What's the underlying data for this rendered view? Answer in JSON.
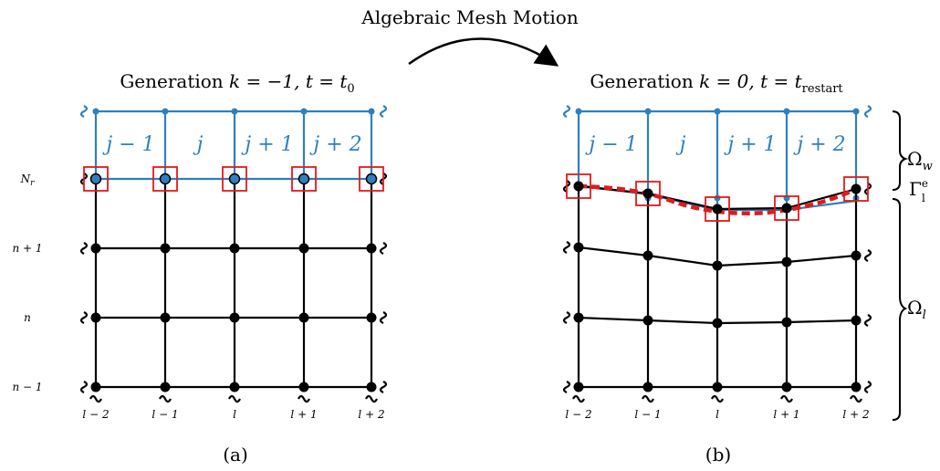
{
  "top_label": "Algebraic Mesh Motion",
  "panel_a": {
    "title_prefix": "Generation ",
    "title_k": "k = −1, ",
    "title_t": "t = t",
    "title_t_sub": "0",
    "caption": "(a)",
    "row_labels": [
      "N",
      "n + 1",
      "n",
      "n − 1"
    ],
    "row_label_sub": "r",
    "col_labels": [
      "l − 2",
      "l − 1",
      "l",
      "l + 1",
      "l + 2"
    ],
    "cell_labels": [
      "j − 1",
      "j",
      "j + 1",
      "j + 2"
    ]
  },
  "panel_b": {
    "title_prefix": "Generation ",
    "title_k": "k = 0, ",
    "title_t": "t = t",
    "title_t_sub": "restart",
    "caption": "(b)",
    "col_labels": [
      "l − 2",
      "l − 1",
      "l",
      "l + 1",
      "l + 2"
    ],
    "cell_labels": [
      "j − 1",
      "j",
      "j + 1",
      "j + 2"
    ]
  },
  "region_labels": {
    "omega_w": "Ω",
    "omega_w_sub": "w",
    "gamma": "Γ",
    "gamma_sup": "e",
    "gamma_sub": "l",
    "omega_l": "Ω",
    "omega_l_sub": "l"
  },
  "colors": {
    "blue": "#2f7fbf",
    "black": "#000000",
    "red": "#e31a1c",
    "interface": "#e31a1c"
  }
}
